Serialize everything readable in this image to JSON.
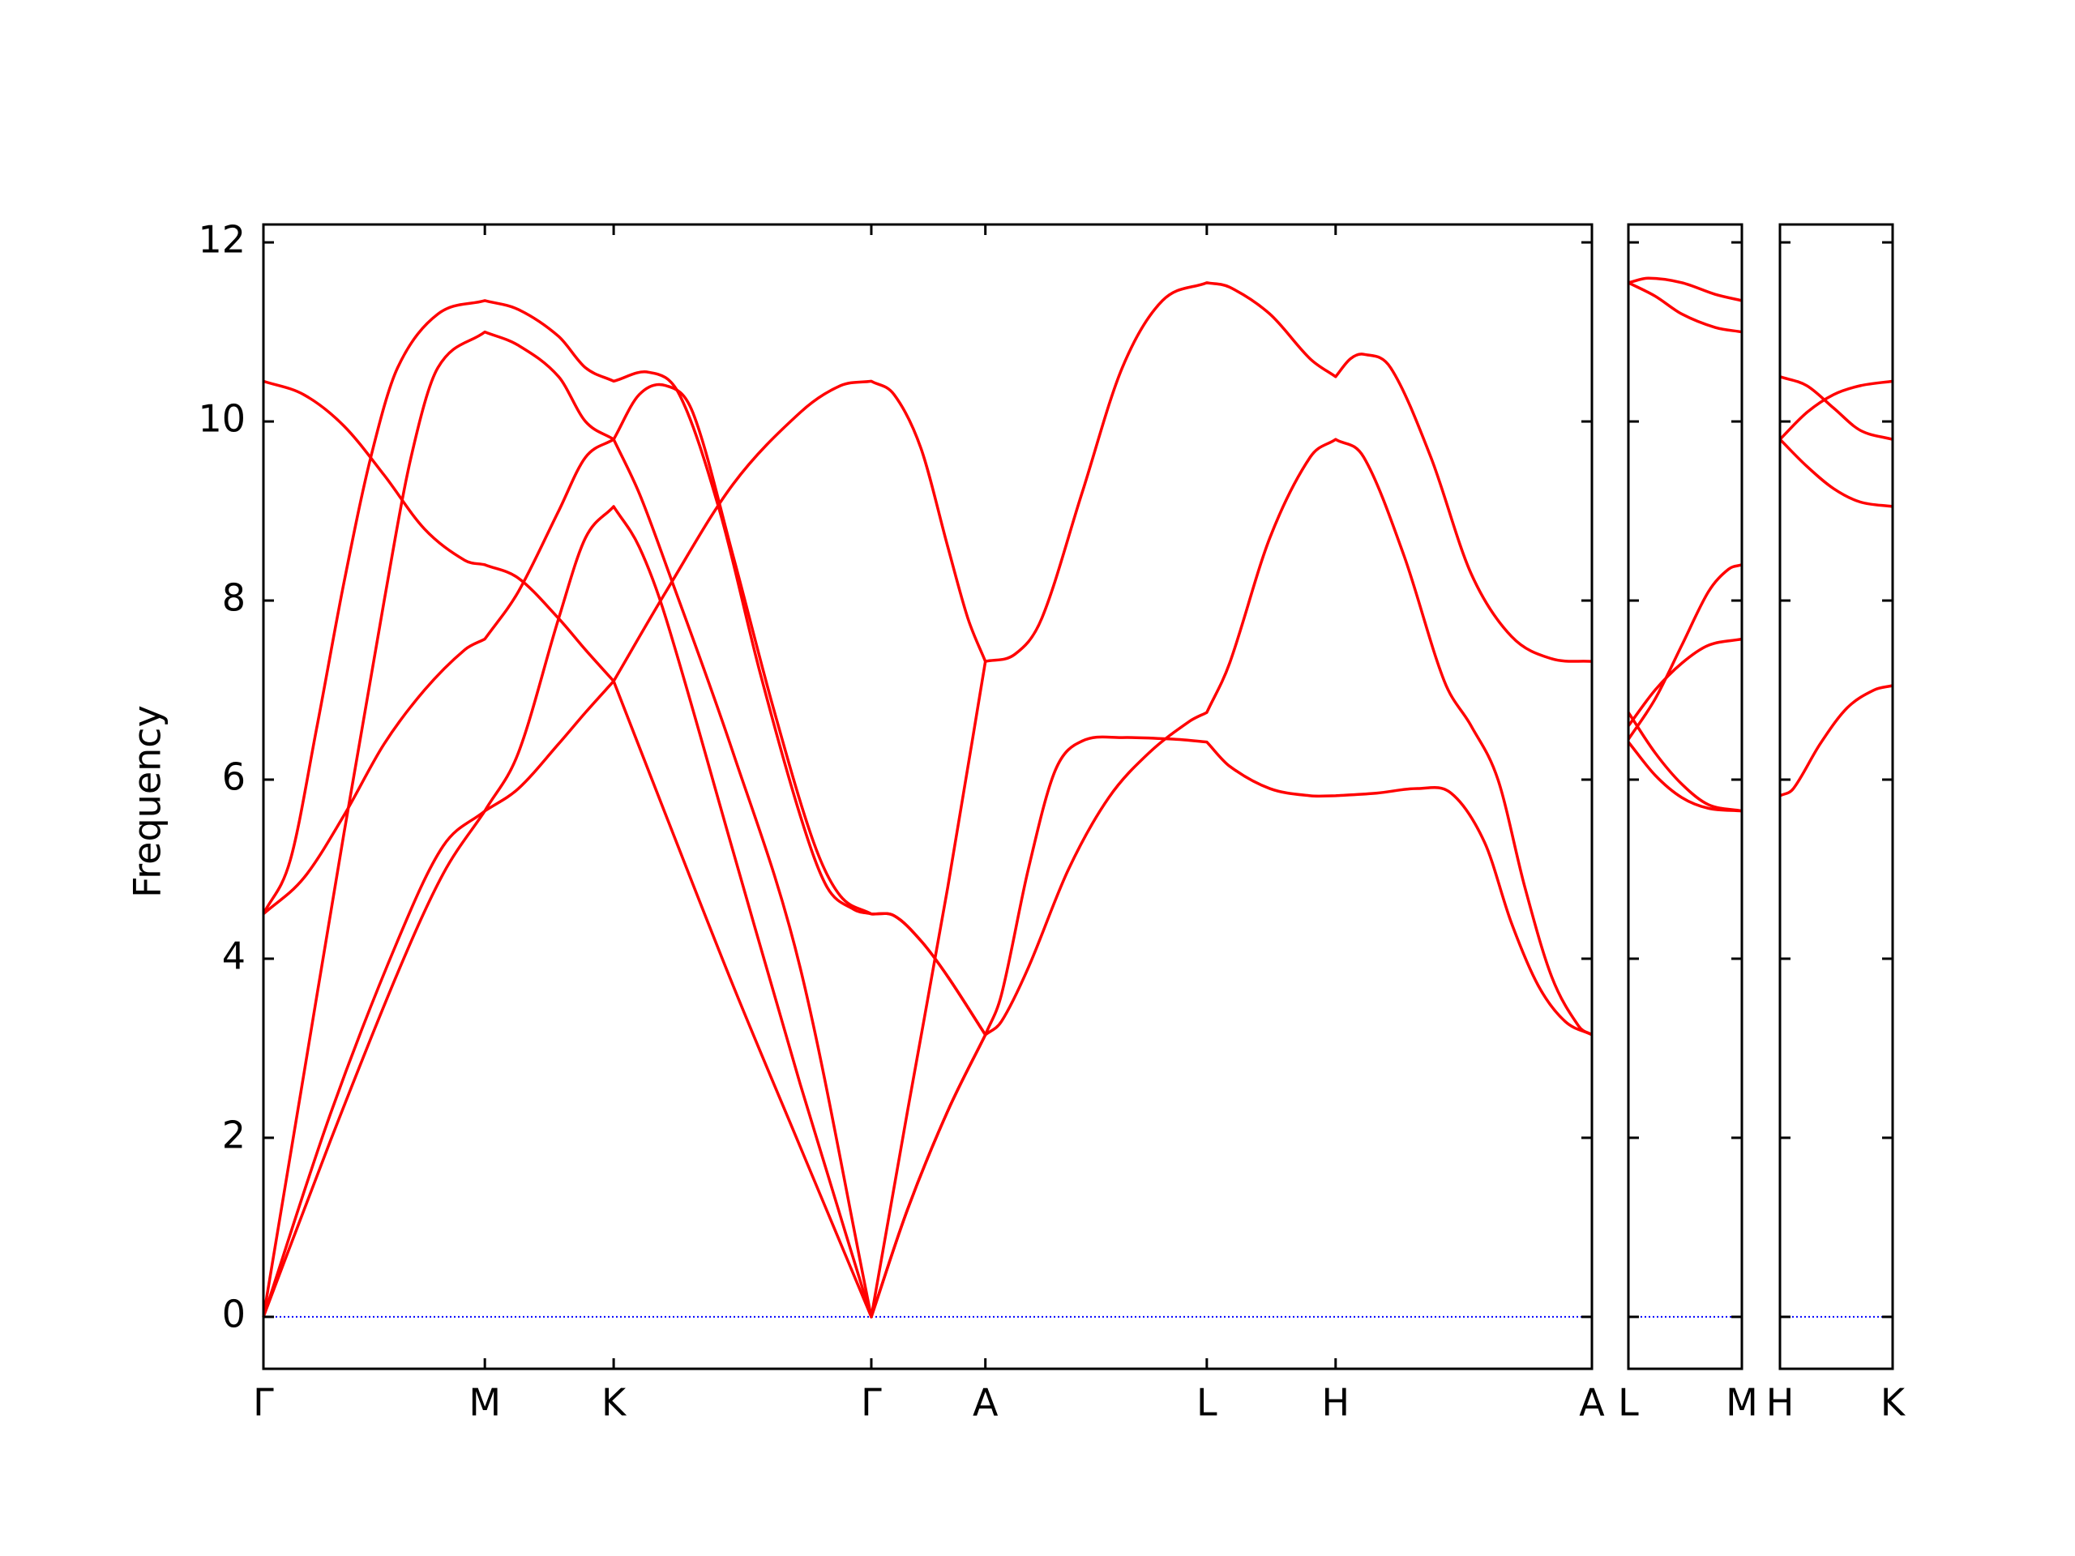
{
  "chart_data": [
    {
      "type": "line",
      "ylabel": "Frequency",
      "color": "#ff0000",
      "hline": 0,
      "hline_color": "#0000ff",
      "xlim": [
        0,
        0.99
      ],
      "ylim": [
        -0.58,
        12.2
      ],
      "yticks": [
        0,
        2,
        4,
        6,
        8,
        10,
        12
      ],
      "show_ytick_labels": true,
      "xticks": [
        {
          "value": 0,
          "label": "Γ"
        },
        {
          "value": 0.165,
          "label": "M"
        },
        {
          "value": 0.261,
          "label": "K"
        },
        {
          "value": 0.453,
          "label": "Γ"
        },
        {
          "value": 0.538,
          "label": "A"
        },
        {
          "value": 0.703,
          "label": "L"
        },
        {
          "value": 0.799,
          "label": "H"
        },
        {
          "value": 0.99,
          "label": "A"
        }
      ],
      "series": [
        {
          "x": [
            0,
            0.05,
            0.1,
            0.134,
            0.165,
            0.19,
            0.22,
            0.24,
            0.261,
            0.28,
            0.3,
            0.35,
            0.4,
            0.453,
            0.48,
            0.51,
            0.538
          ],
          "values": [
            0,
            1.97,
            3.84,
            4.95,
            5.65,
            6.3,
            7.8,
            8.7,
            9.05,
            8.6,
            7.8,
            5.2,
            2.6,
            0,
            1.2,
            2.3,
            3.15
          ]
        },
        {
          "x": [
            0,
            0.05,
            0.1,
            0.134,
            0.165,
            0.19,
            0.22,
            0.24,
            0.261,
            0.3,
            0.35,
            0.4,
            0.43,
            0.453,
            0.47,
            0.49,
            0.51,
            0.525,
            0.538
          ],
          "values": [
            0,
            2.27,
            4.2,
            5.26,
            5.65,
            5.9,
            6.4,
            6.75,
            7.1,
            8.1,
            9.3,
            10.1,
            10.4,
            10.45,
            10.3,
            9.7,
            8.6,
            7.8,
            7.32
          ]
        },
        {
          "x": [
            0,
            0.03,
            0.06,
            0.09,
            0.11,
            0.13,
            0.165,
            0.19,
            0.22,
            0.24,
            0.261,
            0.28,
            0.3,
            0.32,
            0.35,
            0.38,
            0.41,
            0.43,
            0.453,
            0.47,
            0.49,
            0.51,
            0.538
          ],
          "values": [
            0,
            2.7,
            5.4,
            8.0,
            9.6,
            10.6,
            11.0,
            10.85,
            10.5,
            10.0,
            9.8,
            10.3,
            10.4,
            10.1,
            8.5,
            6.8,
            5.3,
            4.7,
            4.5,
            4.48,
            4.2,
            3.8,
            3.15
          ]
        },
        {
          "x": [
            0,
            0.02,
            0.04,
            0.06,
            0.08,
            0.1,
            0.13,
            0.165,
            0.19,
            0.22,
            0.24,
            0.261,
            0.287,
            0.31,
            0.34,
            0.37,
            0.4,
            0.42,
            0.44,
            0.453,
            0.47,
            0.49,
            0.51,
            0.538
          ],
          "values": [
            4.5,
            5.1,
            6.6,
            8.2,
            9.6,
            10.6,
            11.2,
            11.35,
            11.25,
            10.95,
            10.6,
            10.45,
            10.55,
            10.3,
            9.0,
            7.2,
            5.6,
            4.8,
            4.55,
            4.5,
            4.48,
            4.2,
            3.8,
            3.15
          ]
        },
        {
          "x": [
            0,
            0.03,
            0.06,
            0.09,
            0.12,
            0.15,
            0.165,
            0.19,
            0.22,
            0.24,
            0.261,
            0.28,
            0.3,
            0.35,
            0.4,
            0.453,
            0.48,
            0.51,
            0.538
          ],
          "values": [
            4.5,
            4.9,
            5.6,
            6.4,
            7.0,
            7.45,
            7.57,
            8.1,
            9.0,
            9.6,
            9.8,
            9.2,
            8.4,
            6.3,
            3.9,
            0,
            2.3,
            4.8,
            7.32
          ]
        },
        {
          "x": [
            0,
            0.03,
            0.06,
            0.09,
            0.12,
            0.15,
            0.165,
            0.19,
            0.22,
            0.24,
            0.261,
            0.3,
            0.35,
            0.4,
            0.453,
            0.48,
            0.51,
            0.538
          ],
          "values": [
            10.45,
            10.3,
            9.95,
            9.4,
            8.8,
            8.45,
            8.4,
            8.25,
            7.8,
            7.45,
            7.1,
            5.6,
            3.7,
            1.9,
            0,
            1.2,
            2.3,
            3.15
          ]
        },
        {
          "x": [
            0.538,
            0.55,
            0.57,
            0.59,
            0.61,
            0.64,
            0.68,
            0.703,
            0.72,
            0.75,
            0.78,
            0.799,
            0.83,
            0.86,
            0.885,
            0.91,
            0.93,
            0.95,
            0.97,
            0.99
          ],
          "values": [
            3.15,
            3.6,
            5.0,
            6.1,
            6.43,
            6.47,
            6.45,
            6.42,
            6.15,
            5.9,
            5.82,
            5.82,
            5.85,
            5.9,
            5.85,
            5.3,
            4.4,
            3.7,
            3.3,
            3.15
          ]
        },
        {
          "x": [
            0.538,
            0.55,
            0.57,
            0.6,
            0.63,
            0.66,
            0.69,
            0.703,
            0.72,
            0.75,
            0.78,
            0.799,
            0.82,
            0.85,
            0.88,
            0.9,
            0.92,
            0.94,
            0.96,
            0.98,
            0.99
          ],
          "values": [
            3.15,
            3.3,
            3.9,
            5.0,
            5.8,
            6.3,
            6.65,
            6.75,
            7.3,
            8.7,
            9.6,
            9.8,
            9.6,
            8.5,
            7.1,
            6.6,
            6.0,
            4.8,
            3.8,
            3.25,
            3.15
          ]
        },
        {
          "x": [
            0.538,
            0.56,
            0.58,
            0.61,
            0.64,
            0.67,
            0.703,
            0.72,
            0.75,
            0.78,
            0.799,
            0.81,
            0.82,
            0.84,
            0.87,
            0.9,
            0.93,
            0.96,
            0.99
          ],
          "values": [
            7.32,
            7.4,
            7.8,
            9.2,
            10.6,
            11.35,
            11.55,
            11.5,
            11.2,
            10.7,
            10.5,
            10.7,
            10.75,
            10.6,
            9.6,
            8.3,
            7.6,
            7.35,
            7.32
          ]
        }
      ]
    },
    {
      "type": "line",
      "color": "#ff0000",
      "hline": 0,
      "hline_color": "#0000ff",
      "xlim": [
        0,
        0.085
      ],
      "ylim": [
        -0.58,
        12.2
      ],
      "yticks": [
        0,
        2,
        4,
        6,
        8,
        10,
        12
      ],
      "show_ytick_labels": false,
      "xticks": [
        {
          "value": 0,
          "label": "L"
        },
        {
          "value": 0.085,
          "label": "M"
        }
      ],
      "series": [
        {
          "x": [
            0,
            0.015,
            0.04,
            0.065,
            0.085
          ],
          "values": [
            11.55,
            11.6,
            11.55,
            11.42,
            11.35
          ]
        },
        {
          "x": [
            0,
            0.02,
            0.04,
            0.065,
            0.085
          ],
          "values": [
            11.55,
            11.4,
            11.2,
            11.05,
            11.0
          ]
        },
        {
          "x": [
            0,
            0.02,
            0.04,
            0.06,
            0.075,
            0.085
          ],
          "values": [
            6.45,
            6.9,
            7.5,
            8.1,
            8.35,
            8.4
          ]
        },
        {
          "x": [
            0,
            0.02,
            0.04,
            0.06,
            0.085
          ],
          "values": [
            6.6,
            7.0,
            7.3,
            7.5,
            7.57
          ]
        },
        {
          "x": [
            0,
            0.02,
            0.04,
            0.06,
            0.085
          ],
          "values": [
            6.75,
            6.3,
            5.95,
            5.72,
            5.65
          ]
        },
        {
          "x": [
            0,
            0.02,
            0.04,
            0.06,
            0.085
          ],
          "values": [
            6.42,
            6.05,
            5.8,
            5.68,
            5.65
          ]
        }
      ]
    },
    {
      "type": "line",
      "color": "#ff0000",
      "hline": 0,
      "hline_color": "#0000ff",
      "xlim": [
        0,
        0.084
      ],
      "ylim": [
        -0.58,
        12.2
      ],
      "yticks": [
        0,
        2,
        4,
        6,
        8,
        10,
        12
      ],
      "show_ytick_labels": false,
      "xticks": [
        {
          "value": 0,
          "label": "H"
        },
        {
          "value": 0.084,
          "label": "K"
        }
      ],
      "series": [
        {
          "x": [
            0,
            0.01,
            0.03,
            0.05,
            0.07,
            0.084
          ],
          "values": [
            5.82,
            5.9,
            6.4,
            6.8,
            7.0,
            7.05
          ]
        },
        {
          "x": [
            0,
            0.02,
            0.04,
            0.06,
            0.084
          ],
          "values": [
            9.8,
            9.5,
            9.25,
            9.1,
            9.05
          ]
        },
        {
          "x": [
            0,
            0.02,
            0.04,
            0.06,
            0.084
          ],
          "values": [
            9.8,
            10.1,
            10.3,
            10.4,
            10.45
          ]
        },
        {
          "x": [
            0,
            0.02,
            0.04,
            0.06,
            0.084
          ],
          "values": [
            10.5,
            10.4,
            10.15,
            9.9,
            9.8
          ]
        }
      ]
    }
  ]
}
